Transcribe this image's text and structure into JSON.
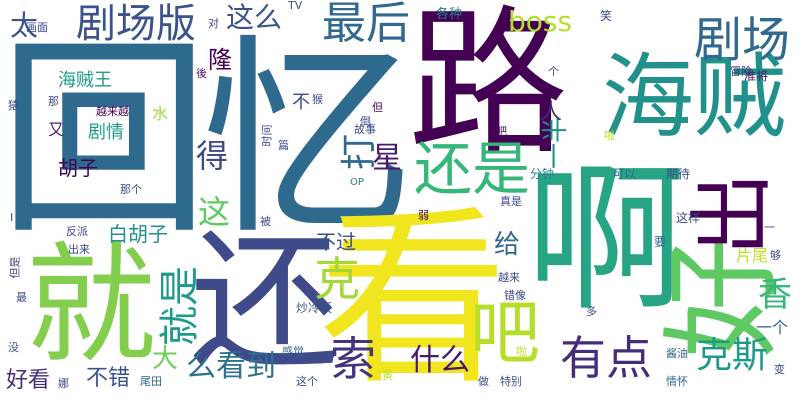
{
  "words": [
    {
      "text": "回忆",
      "color": "#2e6a8e"
    },
    {
      "text": "路",
      "color": "#440154"
    },
    {
      "text": "啊",
      "color": "#26a484"
    },
    {
      "text": "看",
      "color": "#f1e51d"
    },
    {
      "text": "还",
      "color": "#3e4a89"
    },
    {
      "text": "就",
      "color": "#83cf4d"
    },
    {
      "text": "好",
      "color": "#5ec962"
    },
    {
      "text": "海贼",
      "color": "#21918c"
    },
    {
      "text": "出",
      "color": "#440154"
    },
    {
      "text": "吧",
      "color": "#b5de2b"
    },
    {
      "text": "还是",
      "color": "#35b779"
    },
    {
      "text": "剧场",
      "color": "#31688e"
    },
    {
      "text": "剧场版",
      "color": "#3b528b"
    },
    {
      "text": "最后",
      "color": "#31688e"
    },
    {
      "text": "有点",
      "color": "#472c7a"
    },
    {
      "text": "克",
      "color": "#a2d939"
    },
    {
      "text": "索",
      "color": "#46337e"
    },
    {
      "text": "就是",
      "color": "#1f9a8a"
    },
    {
      "text": "这么",
      "color": "#3b528b"
    },
    {
      "text": "boss",
      "color": "#b5de2b"
    },
    {
      "text": "克斯",
      "color": "#1f9a8a"
    },
    {
      "text": "么看到",
      "color": "#2c728e"
    },
    {
      "text": "什么",
      "color": "#48186a"
    },
    {
      "text": "香",
      "color": "#35b779"
    },
    {
      "text": "太",
      "color": "#3b528b"
    },
    {
      "text": "打",
      "color": "#31688e"
    },
    {
      "text": "星",
      "color": "#48186a"
    },
    {
      "text": "得",
      "color": "#3e4a89"
    },
    {
      "text": "这",
      "color": "#5ec962"
    },
    {
      "text": "给",
      "color": "#31688e"
    },
    {
      "text": "一半",
      "color": "#21918c"
    },
    {
      "text": "大",
      "color": "#6ece58"
    },
    {
      "text": "不错",
      "color": "#3b528b"
    },
    {
      "text": "好看",
      "color": "#472c7a"
    },
    {
      "text": "白胡子",
      "color": "#21918c"
    },
    {
      "text": "海贼王",
      "color": "#1f9e89"
    },
    {
      "text": "剧情",
      "color": "#1f9e89"
    },
    {
      "text": "胡子",
      "color": "#440154"
    },
    {
      "text": "不过",
      "color": "#3b528b"
    },
    {
      "text": "人",
      "color": "#482677"
    },
    {
      "text": "隆",
      "color": "#440154"
    },
    {
      "text": "不",
      "color": "#3e4a89"
    },
    {
      "text": "水",
      "color": "#a0da39"
    },
    {
      "text": "又",
      "color": "#482677"
    },
    {
      "text": "片尾",
      "color": "#bddf26"
    },
    {
      "text": "一个",
      "color": "#31688e"
    },
    {
      "text": "各种",
      "color": "#287c8e"
    },
    {
      "text": "笑",
      "color": "#3e4a89"
    },
    {
      "text": "可以",
      "color": "#31688e"
    },
    {
      "text": "期待",
      "color": "#3e4a89"
    },
    {
      "text": "分钟",
      "color": "#26828e"
    },
    {
      "text": "这样",
      "color": "#3e4a89"
    },
    {
      "text": "要",
      "color": "#31688e"
    },
    {
      "text": "越来越",
      "color": "#440154"
    },
    {
      "text": "冒险",
      "color": "#46337e"
    },
    {
      "text": "准将",
      "color": "#48186a"
    },
    {
      "text": "炒冷饭",
      "color": "#3b528b"
    },
    {
      "text": "感觉",
      "color": "#31688e"
    },
    {
      "text": "这个",
      "color": "#3e4a89"
    },
    {
      "text": "特别",
      "color": "#3b528b"
    },
    {
      "text": "尾田",
      "color": "#31688e"
    },
    {
      "text": "情怀",
      "color": "#31688e"
    },
    {
      "text": "做",
      "color": "#3b528b"
    },
    {
      "text": "变",
      "color": "#3e4a89"
    },
    {
      "text": "够",
      "color": "#3e4a89"
    },
    {
      "text": "画面",
      "color": "#3e4a89"
    },
    {
      "text": "对",
      "color": "#3e4a89"
    },
    {
      "text": "TV",
      "color": "#3e4a89"
    },
    {
      "text": "那",
      "color": "#3e4a89"
    },
    {
      "text": "猿",
      "color": "#3e4a89"
    },
    {
      "text": "後",
      "color": "#48186a"
    },
    {
      "text": "个",
      "color": "#3e4a89"
    },
    {
      "text": "故事",
      "color": "#3e4a89"
    },
    {
      "text": "篇",
      "color": "#3e4a89"
    },
    {
      "text": "时间",
      "color": "#3e4a89"
    },
    {
      "text": "那个",
      "color": "#3e4a89"
    },
    {
      "text": "OP",
      "color": "#26828e"
    },
    {
      "text": "真是",
      "color": "#3e4a89"
    },
    {
      "text": "被",
      "color": "#3e4a89"
    },
    {
      "text": "弱",
      "color": "#440154"
    },
    {
      "text": "反派",
      "color": "#3e4a89"
    },
    {
      "text": "出来",
      "color": "#3e4a89"
    },
    {
      "text": "但是",
      "color": "#3e4a89"
    },
    {
      "text": "最",
      "color": "#3e4a89"
    },
    {
      "text": "没",
      "color": "#3e4a89"
    },
    {
      "text": "娜",
      "color": "#3e4a89"
    },
    {
      "text": "越来",
      "color": "#3e4a89"
    },
    {
      "text": "错像",
      "color": "#3e4a89"
    },
    {
      "text": "多",
      "color": "#3e4a89"
    },
    {
      "text": "酱油",
      "color": "#31688e"
    },
    {
      "text": "黄",
      "color": "#b5de2b"
    },
    {
      "text": "啦",
      "color": "#bddf26"
    },
    {
      "text": "猴",
      "color": "#3b528b"
    },
    {
      "text": "但",
      "color": "#440154"
    },
    {
      "text": "吧",
      "color": "#440154"
    },
    {
      "text": "啦",
      "color": "#bddf26"
    },
    {
      "text": "倒",
      "color": "#3e4a89"
    },
    {
      "text": "一",
      "color": "#3e4a89"
    },
    {
      "text": "I",
      "color": "#3e4a89"
    }
  ]
}
